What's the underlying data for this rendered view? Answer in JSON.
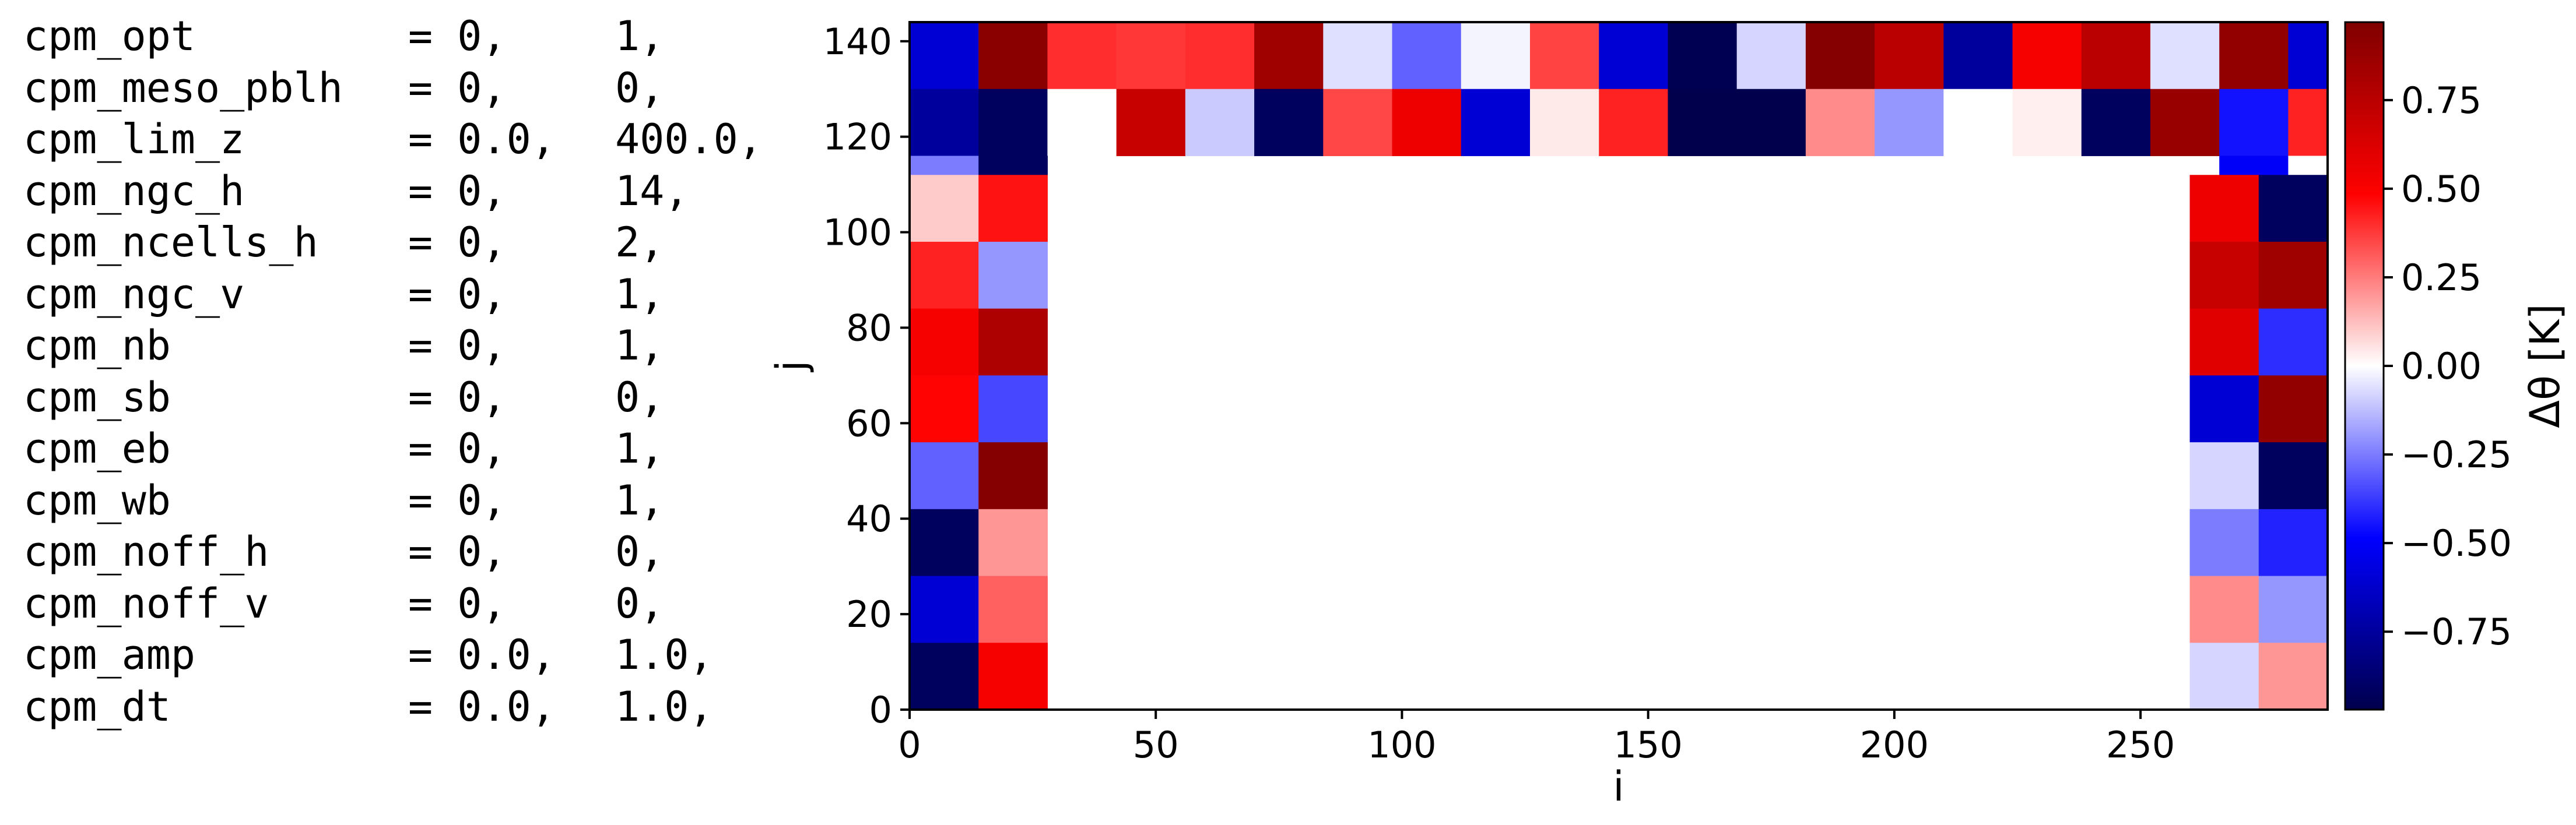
{
  "namelist": [
    {
      "name": "cpm_opt",
      "v1": "0,",
      "v2": "1,"
    },
    {
      "name": "cpm_meso_pblh",
      "v1": "0,",
      "v2": "0,"
    },
    {
      "name": "cpm_lim_z",
      "v1": "0.0,",
      "v2": "400.0,"
    },
    {
      "name": "cpm_ngc_h",
      "v1": "0,",
      "v2": "14,"
    },
    {
      "name": "cpm_ncells_h",
      "v1": "0,",
      "v2": "2,"
    },
    {
      "name": "cpm_ngc_v",
      "v1": "0,",
      "v2": "1,"
    },
    {
      "name": "cpm_nb",
      "v1": "0,",
      "v2": "1,"
    },
    {
      "name": "cpm_sb",
      "v1": "0,",
      "v2": "0,"
    },
    {
      "name": "cpm_eb",
      "v1": "0,",
      "v2": "1,"
    },
    {
      "name": "cpm_wb",
      "v1": "0,",
      "v2": "1,"
    },
    {
      "name": "cpm_noff_h",
      "v1": "0,",
      "v2": "0,"
    },
    {
      "name": "cpm_noff_v",
      "v1": "0,",
      "v2": "0,"
    },
    {
      "name": "cpm_amp",
      "v1": "0.0,",
      "v2": "1.0,"
    },
    {
      "name": "cpm_dt",
      "v1": "0.0,",
      "v2": "1.0,"
    }
  ],
  "chart_data": {
    "type": "heatmap",
    "xlabel": "i",
    "ylabel": "j",
    "xlim": [
      0,
      288
    ],
    "ylim": [
      0,
      144
    ],
    "xticks": [
      0,
      50,
      100,
      150,
      200,
      250
    ],
    "yticks": [
      0,
      20,
      40,
      60,
      80,
      100,
      120,
      140
    ],
    "colorbar_label": "Δθ [K]",
    "colorbar_range": [
      -0.97,
      0.97
    ],
    "colorbar_ticks": [
      -0.75,
      -0.5,
      -0.25,
      0.0,
      0.25,
      0.5,
      0.75
    ],
    "colormap": "seismic",
    "background_value": 0.0,
    "cells": [
      {
        "x0": 0,
        "x1": 14,
        "y0": 130,
        "y1": 144,
        "v": -0.6
      },
      {
        "x0": 14,
        "x1": 28,
        "y0": 130,
        "y1": 144,
        "v": 0.93
      },
      {
        "x0": 28,
        "x1": 42,
        "y0": 130,
        "y1": 144,
        "v": 0.4
      },
      {
        "x0": 42,
        "x1": 56,
        "y0": 130,
        "y1": 144,
        "v": 0.38
      },
      {
        "x0": 56,
        "x1": 70,
        "y0": 130,
        "y1": 144,
        "v": 0.4
      },
      {
        "x0": 70,
        "x1": 84,
        "y0": 130,
        "y1": 144,
        "v": 0.85
      },
      {
        "x0": 84,
        "x1": 98,
        "y0": 130,
        "y1": 144,
        "v": -0.06
      },
      {
        "x0": 98,
        "x1": 112,
        "y0": 130,
        "y1": 144,
        "v": -0.3
      },
      {
        "x0": 112,
        "x1": 126,
        "y0": 130,
        "y1": 144,
        "v": -0.02
      },
      {
        "x0": 126,
        "x1": 140,
        "y0": 130,
        "y1": 144,
        "v": 0.36
      },
      {
        "x0": 140,
        "x1": 154,
        "y0": 130,
        "y1": 144,
        "v": -0.6
      },
      {
        "x0": 154,
        "x1": 168,
        "y0": 130,
        "y1": 144,
        "v": -0.95
      },
      {
        "x0": 168,
        "x1": 182,
        "y0": 130,
        "y1": 144,
        "v": -0.08
      },
      {
        "x0": 182,
        "x1": 196,
        "y0": 130,
        "y1": 144,
        "v": 0.95
      },
      {
        "x0": 196,
        "x1": 210,
        "y0": 130,
        "y1": 144,
        "v": 0.75
      },
      {
        "x0": 210,
        "x1": 224,
        "y0": 130,
        "y1": 144,
        "v": -0.75
      },
      {
        "x0": 224,
        "x1": 238,
        "y0": 130,
        "y1": 144,
        "v": 0.52
      },
      {
        "x0": 238,
        "x1": 252,
        "y0": 130,
        "y1": 144,
        "v": 0.75
      },
      {
        "x0": 252,
        "x1": 266,
        "y0": 130,
        "y1": 144,
        "v": -0.06
      },
      {
        "x0": 266,
        "x1": 280,
        "y0": 130,
        "y1": 144,
        "v": 0.9
      },
      {
        "x0": 280,
        "x1": 288,
        "y0": 130,
        "y1": 144,
        "v": -0.6
      },
      {
        "x0": 0,
        "x1": 14,
        "y0": 116,
        "y1": 130,
        "v": -0.75
      },
      {
        "x0": 14,
        "x1": 28,
        "y0": 116,
        "y1": 130,
        "v": -0.92
      },
      {
        "x0": 28,
        "x1": 42,
        "y0": 116,
        "y1": 130,
        "v": 0.0
      },
      {
        "x0": 42,
        "x1": 56,
        "y0": 116,
        "y1": 130,
        "v": 0.7
      },
      {
        "x0": 56,
        "x1": 70,
        "y0": 116,
        "y1": 130,
        "v": -0.1
      },
      {
        "x0": 70,
        "x1": 84,
        "y0": 116,
        "y1": 130,
        "v": -0.92
      },
      {
        "x0": 84,
        "x1": 98,
        "y0": 116,
        "y1": 130,
        "v": 0.35
      },
      {
        "x0": 98,
        "x1": 112,
        "y0": 116,
        "y1": 130,
        "v": 0.55
      },
      {
        "x0": 112,
        "x1": 126,
        "y0": 116,
        "y1": 130,
        "v": -0.6
      },
      {
        "x0": 126,
        "x1": 140,
        "y0": 116,
        "y1": 130,
        "v": 0.04
      },
      {
        "x0": 140,
        "x1": 154,
        "y0": 116,
        "y1": 130,
        "v": 0.42
      },
      {
        "x0": 154,
        "x1": 168,
        "y0": 116,
        "y1": 130,
        "v": -0.97
      },
      {
        "x0": 168,
        "x1": 182,
        "y0": 116,
        "y1": 130,
        "v": -0.97
      },
      {
        "x0": 182,
        "x1": 196,
        "y0": 116,
        "y1": 130,
        "v": 0.22
      },
      {
        "x0": 196,
        "x1": 210,
        "y0": 116,
        "y1": 130,
        "v": -0.2
      },
      {
        "x0": 210,
        "x1": 224,
        "y0": 116,
        "y1": 130,
        "v": 0.0
      },
      {
        "x0": 224,
        "x1": 238,
        "y0": 116,
        "y1": 130,
        "v": 0.03
      },
      {
        "x0": 238,
        "x1": 252,
        "y0": 116,
        "y1": 130,
        "v": -0.92
      },
      {
        "x0": 252,
        "x1": 266,
        "y0": 116,
        "y1": 130,
        "v": 0.88
      },
      {
        "x0": 266,
        "x1": 280,
        "y0": 116,
        "y1": 130,
        "v": -0.45
      },
      {
        "x0": 280,
        "x1": 288,
        "y0": 116,
        "y1": 130,
        "v": 0.42
      },
      {
        "x0": 0,
        "x1": 14,
        "y0": 112,
        "y1": 116,
        "v": -0.25
      },
      {
        "x0": 14,
        "x1": 28,
        "y0": 112,
        "y1": 116,
        "v": -0.92
      },
      {
        "x0": 266,
        "x1": 280,
        "y0": 112,
        "y1": 116,
        "v": -0.5
      },
      {
        "x0": 280,
        "x1": 288,
        "y0": 112,
        "y1": 116,
        "v": 0.0
      },
      {
        "x0": 0,
        "x1": 14,
        "y0": 98,
        "y1": 112,
        "v": 0.1
      },
      {
        "x0": 14,
        "x1": 28,
        "y0": 98,
        "y1": 112,
        "v": 0.45
      },
      {
        "x0": 0,
        "x1": 14,
        "y0": 84,
        "y1": 98,
        "v": 0.42
      },
      {
        "x0": 14,
        "x1": 28,
        "y0": 84,
        "y1": 98,
        "v": -0.2
      },
      {
        "x0": 0,
        "x1": 14,
        "y0": 70,
        "y1": 84,
        "v": 0.52
      },
      {
        "x0": 14,
        "x1": 28,
        "y0": 70,
        "y1": 84,
        "v": 0.8
      },
      {
        "x0": 0,
        "x1": 14,
        "y0": 56,
        "y1": 70,
        "v": 0.48
      },
      {
        "x0": 14,
        "x1": 28,
        "y0": 56,
        "y1": 70,
        "v": -0.35
      },
      {
        "x0": 0,
        "x1": 14,
        "y0": 42,
        "y1": 56,
        "v": -0.3
      },
      {
        "x0": 14,
        "x1": 28,
        "y0": 42,
        "y1": 56,
        "v": 0.95
      },
      {
        "x0": 0,
        "x1": 14,
        "y0": 28,
        "y1": 42,
        "v": -0.92
      },
      {
        "x0": 14,
        "x1": 28,
        "y0": 28,
        "y1": 42,
        "v": 0.2
      },
      {
        "x0": 0,
        "x1": 14,
        "y0": 14,
        "y1": 28,
        "v": -0.6
      },
      {
        "x0": 14,
        "x1": 28,
        "y0": 14,
        "y1": 28,
        "v": 0.3
      },
      {
        "x0": 0,
        "x1": 14,
        "y0": 0,
        "y1": 14,
        "v": -0.92
      },
      {
        "x0": 14,
        "x1": 28,
        "y0": 0,
        "y1": 14,
        "v": 0.52
      },
      {
        "x0": 260,
        "x1": 274,
        "y0": 98,
        "y1": 112,
        "v": 0.55
      },
      {
        "x0": 274,
        "x1": 288,
        "y0": 98,
        "y1": 112,
        "v": -0.92
      },
      {
        "x0": 260,
        "x1": 274,
        "y0": 84,
        "y1": 98,
        "v": 0.7
      },
      {
        "x0": 274,
        "x1": 288,
        "y0": 84,
        "y1": 98,
        "v": 0.85
      },
      {
        "x0": 260,
        "x1": 274,
        "y0": 70,
        "y1": 84,
        "v": 0.6
      },
      {
        "x0": 274,
        "x1": 288,
        "y0": 70,
        "y1": 84,
        "v": -0.4
      },
      {
        "x0": 260,
        "x1": 274,
        "y0": 56,
        "y1": 70,
        "v": -0.6
      },
      {
        "x0": 274,
        "x1": 288,
        "y0": 56,
        "y1": 70,
        "v": 0.9
      },
      {
        "x0": 260,
        "x1": 274,
        "y0": 42,
        "y1": 56,
        "v": -0.08
      },
      {
        "x0": 274,
        "x1": 288,
        "y0": 42,
        "y1": 56,
        "v": -0.92
      },
      {
        "x0": 260,
        "x1": 274,
        "y0": 28,
        "y1": 42,
        "v": -0.25
      },
      {
        "x0": 274,
        "x1": 288,
        "y0": 28,
        "y1": 42,
        "v": -0.42
      },
      {
        "x0": 260,
        "x1": 274,
        "y0": 14,
        "y1": 28,
        "v": 0.22
      },
      {
        "x0": 274,
        "x1": 288,
        "y0": 14,
        "y1": 28,
        "v": -0.2
      },
      {
        "x0": 260,
        "x1": 274,
        "y0": 0,
        "y1": 14,
        "v": -0.08
      },
      {
        "x0": 274,
        "x1": 288,
        "y0": 0,
        "y1": 14,
        "v": 0.2
      }
    ]
  }
}
